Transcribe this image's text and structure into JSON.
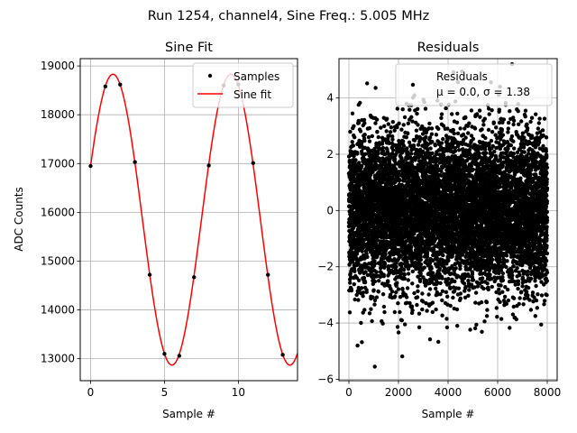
{
  "suptitle": "Run 1254, channel4, Sine Freq.: 5.005 MHz",
  "chart_data": [
    {
      "type": "line",
      "title": "Sine Fit",
      "xlabel": "Sample #",
      "ylabel": "ADC Counts",
      "xlim": [
        -0.7,
        14.0
      ],
      "ylim": [
        12550,
        19150
      ],
      "xticks": [
        0,
        5,
        10
      ],
      "yticks": [
        13000,
        14000,
        15000,
        16000,
        17000,
        18000,
        19000
      ],
      "grid": true,
      "legend_position": "top-right",
      "series": [
        {
          "name": "Samples",
          "style": "points",
          "color": "#000000",
          "x": [
            0,
            1,
            2,
            3,
            4,
            5,
            6,
            7,
            8,
            9,
            10,
            11,
            12,
            13
          ],
          "y": [
            16950,
            18580,
            18620,
            17030,
            14720,
            13100,
            13060,
            14670,
            16960,
            18600,
            18620,
            17010,
            14720,
            13080
          ]
        },
        {
          "name": "Sine fit",
          "style": "line",
          "color": "#ff0000",
          "offset": 15850,
          "amplitude": 2980,
          "period": 7.98,
          "phase_sample": -0.45,
          "x_range": [
            0,
            14
          ]
        }
      ]
    },
    {
      "type": "scatter",
      "title": "Residuals",
      "xlabel": "Sample #",
      "ylabel": "",
      "xlim": [
        -400,
        8400
      ],
      "ylim": [
        -6.05,
        5.4
      ],
      "xticks": [
        0,
        2000,
        4000,
        6000,
        8000
      ],
      "yticks": [
        -6,
        -4,
        -2,
        0,
        2,
        4
      ],
      "grid": true,
      "legend_position": "top-right",
      "series": [
        {
          "name": "Residuals",
          "name_line2": "μ = 0.0, σ = 1.38",
          "color": "#000000",
          "n_points": 8000,
          "mean": 0.0,
          "sigma": 1.38
        }
      ]
    }
  ]
}
